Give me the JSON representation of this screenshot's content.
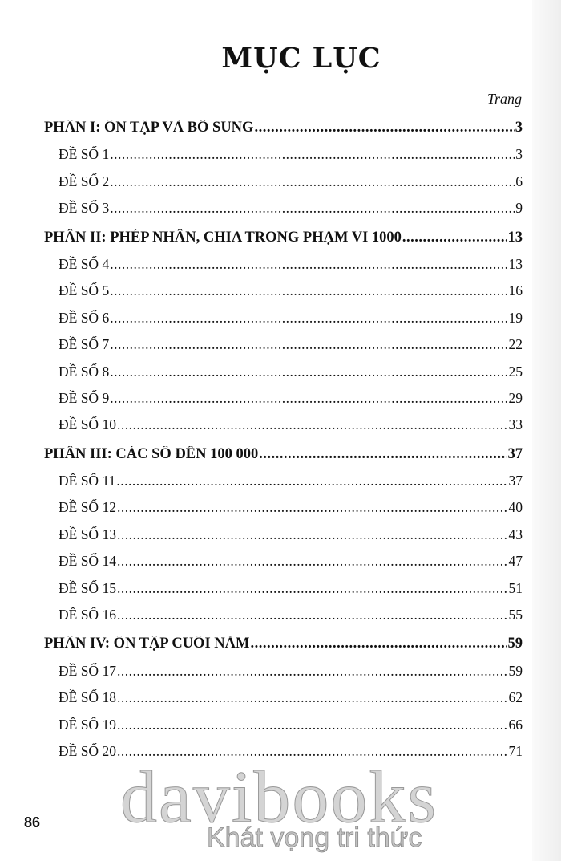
{
  "title": "MỤC LỤC",
  "page_col_label": "Trang",
  "sections": [
    {
      "title": "PHẦN I: ÔN TẬP VÀ BỔ SUNG",
      "page": "3",
      "entries": [
        {
          "label": "ĐỀ SỐ 1",
          "page": "3"
        },
        {
          "label": "ĐỀ SỐ 2",
          "page": "6"
        },
        {
          "label": "ĐỀ SỐ 3",
          "page": "9"
        }
      ]
    },
    {
      "title": "PHẦN II: PHÉP NHÂN, CHIA TRONG PHẠM VI 1000",
      "page": "13",
      "entries": [
        {
          "label": "ĐỀ SỐ 4",
          "page": "13"
        },
        {
          "label": "ĐỀ SỐ 5",
          "page": "16"
        },
        {
          "label": "ĐỀ SỐ 6",
          "page": "19"
        },
        {
          "label": "ĐỀ SỐ 7",
          "page": "22"
        },
        {
          "label": "ĐỀ SỐ 8",
          "page": "25"
        },
        {
          "label": "ĐỀ SỐ 9",
          "page": "29"
        },
        {
          "label": "ĐỀ SỐ 10",
          "page": "33"
        }
      ]
    },
    {
      "title": "PHẦN III: CÁC SỐ ĐẾN 100 000",
      "page": "37",
      "entries": [
        {
          "label": "ĐỀ SỐ 11",
          "page": "37"
        },
        {
          "label": "ĐỀ SỐ 12",
          "page": "40"
        },
        {
          "label": "ĐỀ SỐ 13",
          "page": "43"
        },
        {
          "label": "ĐỀ SỐ 14",
          "page": "47"
        },
        {
          "label": "ĐỀ SỐ 15",
          "page": "51"
        },
        {
          "label": "ĐỀ SỐ 16",
          "page": "55"
        }
      ]
    },
    {
      "title": "PHẦN IV: ÔN TẬP CUỐI NĂM",
      "page": "59",
      "entries": [
        {
          "label": "ĐỀ SỐ 17",
          "page": "59"
        },
        {
          "label": "ĐỀ SỐ 18",
          "page": "62"
        },
        {
          "label": "ĐỀ SỐ 19",
          "page": "66"
        },
        {
          "label": "ĐỀ SỐ 20",
          "page": "71"
        }
      ]
    }
  ],
  "page_number": "86",
  "watermark": {
    "brand": "davibooks",
    "tagline": "Khát vọng tri thức"
  }
}
